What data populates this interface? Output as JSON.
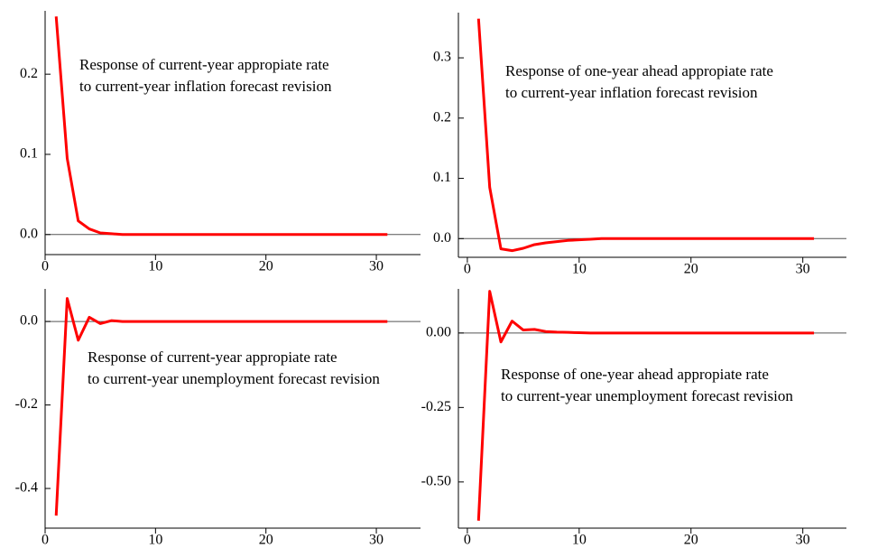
{
  "chart_data": [
    {
      "type": "line",
      "annotation": [
        "Response of current-year appropiate rate",
        "to current-year  inflation forecast revision"
      ],
      "x": [
        1,
        2,
        3,
        4,
        5,
        6,
        7,
        8,
        9,
        10,
        11,
        12,
        13,
        14,
        15,
        16,
        17,
        18,
        19,
        20,
        21,
        22,
        23,
        24,
        25,
        26,
        27,
        28,
        29,
        30,
        31
      ],
      "values": [
        0.272,
        0.095,
        0.017,
        0.007,
        0.002,
        0.001,
        0,
        0,
        0,
        0,
        0,
        0,
        0,
        0,
        0,
        0,
        0,
        0,
        0,
        0,
        0,
        0,
        0,
        0,
        0,
        0,
        0,
        0,
        0,
        0,
        0
      ],
      "color": "#ff0000",
      "zero_line": true,
      "xlim": [
        0,
        34
      ],
      "xticks": [
        0,
        10,
        20,
        30
      ],
      "ylim": [
        -0.025,
        0.279
      ],
      "yticks": [
        {
          "value": 0,
          "label": "0.0"
        },
        0.1,
        0.2
      ]
    },
    {
      "type": "line",
      "annotation": [
        "Response of one-year ahead appropiate rate",
        "to current-year inflation forecast revision"
      ],
      "x": [
        1,
        2,
        3,
        4,
        5,
        6,
        7,
        8,
        9,
        10,
        11,
        12,
        13,
        14,
        15,
        16,
        17,
        18,
        19,
        20,
        21,
        22,
        23,
        24,
        25,
        26,
        27,
        28,
        29,
        30,
        31
      ],
      "values": [
        0.365,
        0.085,
        -0.017,
        -0.02,
        -0.016,
        -0.01,
        -0.007,
        -0.005,
        -0.003,
        -0.002,
        -0.001,
        0,
        0,
        0,
        0,
        0,
        0,
        0,
        0,
        0,
        0,
        0,
        0,
        0,
        0,
        0,
        0,
        0,
        0,
        0,
        0
      ],
      "color": "#ff0000",
      "zero_line": true,
      "xlim": [
        -0.8,
        33.9
      ],
      "xticks": [
        0,
        10,
        20,
        30
      ],
      "ylim": [
        -0.031,
        0.375
      ],
      "yticks": [
        {
          "value": 0,
          "label": "0.0"
        },
        0.1,
        0.2,
        0.3
      ]
    },
    {
      "type": "line",
      "annotation": [
        "Response of current-year appropiate rate",
        "to current-year  unemployment forecast revision"
      ],
      "x": [
        1,
        2,
        3,
        4,
        5,
        6,
        7,
        8,
        9,
        10,
        11,
        12,
        13,
        14,
        15,
        16,
        17,
        18,
        19,
        20,
        21,
        22,
        23,
        24,
        25,
        26,
        27,
        28,
        29,
        30,
        31
      ],
      "values": [
        -0.465,
        0.055,
        -0.045,
        0.01,
        -0.005,
        0.002,
        0,
        0,
        0,
        0,
        0,
        0,
        0,
        0,
        0,
        0,
        0,
        0,
        0,
        0,
        0,
        0,
        0,
        0,
        0,
        0,
        0,
        0,
        0,
        0,
        0
      ],
      "color": "#ff0000",
      "zero_line": true,
      "xlim": [
        0,
        34
      ],
      "xticks": [
        0,
        10,
        20,
        30
      ],
      "ylim": [
        -0.495,
        0.078
      ],
      "yticks": [
        -0.4,
        -0.2,
        {
          "value": 0,
          "label": "0.0"
        }
      ]
    },
    {
      "type": "line",
      "annotation": [
        "Response of one-year ahead appropiate rate",
        "to current-year unemployment forecast revision"
      ],
      "x": [
        1,
        2,
        3,
        4,
        5,
        6,
        7,
        8,
        9,
        10,
        11,
        12,
        13,
        14,
        15,
        16,
        17,
        18,
        19,
        20,
        21,
        22,
        23,
        24,
        25,
        26,
        27,
        28,
        29,
        30,
        31
      ],
      "values": [
        -0.63,
        0.14,
        -0.03,
        0.04,
        0.01,
        0.012,
        0.005,
        0.003,
        0.002,
        0.001,
        0,
        0,
        0,
        0,
        0,
        0,
        0,
        0,
        0,
        0,
        0,
        0,
        0,
        0,
        0,
        0,
        0,
        0,
        0,
        0,
        0
      ],
      "color": "#ff0000",
      "zero_line": true,
      "xlim": [
        -0.8,
        33.9
      ],
      "xticks": [
        0,
        10,
        20,
        30
      ],
      "ylim": [
        -0.655,
        0.148
      ],
      "yticks": [
        {
          "value": -0.5,
          "label": "-0.50"
        },
        -0.25,
        {
          "value": 0,
          "label": "0.00"
        }
      ]
    }
  ]
}
